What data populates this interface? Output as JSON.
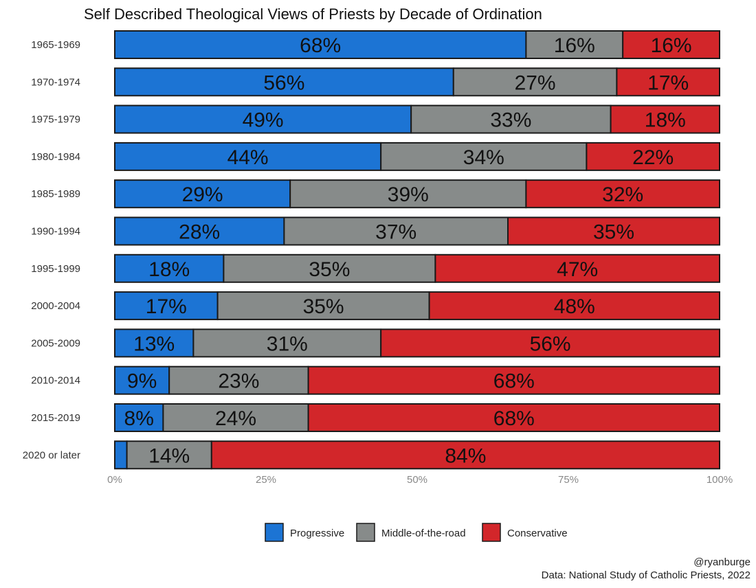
{
  "chart_data": {
    "type": "bar",
    "orientation": "horizontal",
    "stacked": true,
    "title": "Self Described Theological Views of Priests by Decade of Ordination",
    "categories": [
      "1965-1969",
      "1970-1974",
      "1975-1979",
      "1980-1984",
      "1985-1989",
      "1990-1994",
      "1995-1999",
      "2000-2004",
      "2005-2009",
      "2010-2014",
      "2015-2019",
      "2020 or later"
    ],
    "series": [
      {
        "name": "Progressive",
        "color": "#1c74d4",
        "values": [
          68,
          56,
          49,
          44,
          29,
          28,
          18,
          17,
          13,
          9,
          8,
          2
        ]
      },
      {
        "name": "Middle-of-the-road",
        "color": "#878b8a",
        "values": [
          16,
          27,
          33,
          34,
          39,
          37,
          35,
          35,
          31,
          23,
          24,
          14
        ]
      },
      {
        "name": "Conservative",
        "color": "#d2262a",
        "values": [
          16,
          17,
          18,
          22,
          32,
          35,
          47,
          48,
          56,
          68,
          68,
          84
        ]
      }
    ],
    "label_threshold": 5,
    "xlim": [
      0,
      100
    ],
    "xticks": [
      "0%",
      "25%",
      "50%",
      "75%",
      "100%"
    ],
    "grid": false,
    "legend_placement": "bottom",
    "caption": [
      "@ryanburge",
      "Data: National Study of Catholic Priests, 2022"
    ]
  }
}
